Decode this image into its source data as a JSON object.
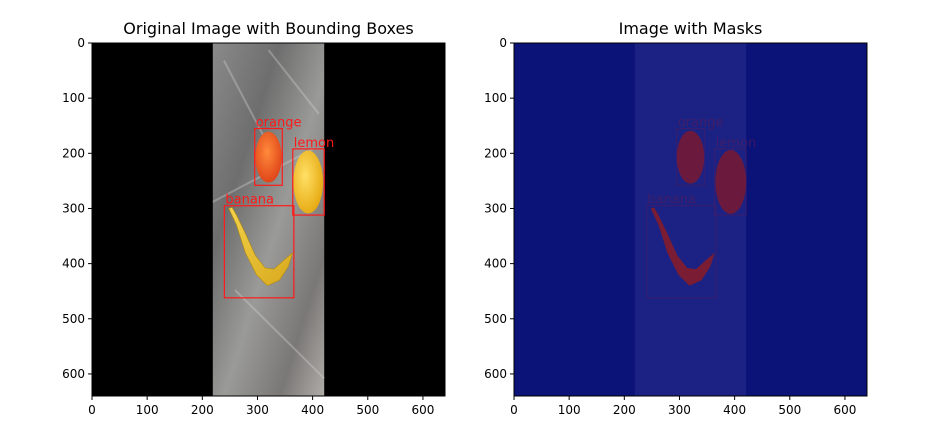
{
  "chart_data": [
    {
      "type": "image",
      "title": "Original Image with Bounding Boxes",
      "xlim": [
        0,
        640
      ],
      "ylim": [
        640,
        0
      ],
      "xticks": [
        0,
        100,
        200,
        300,
        400,
        500,
        600
      ],
      "yticks": [
        0,
        100,
        200,
        300,
        400,
        500,
        600
      ],
      "xtick_labels": [
        "0",
        "100",
        "200",
        "300",
        "400",
        "500",
        "600"
      ],
      "ytick_labels": [
        "0",
        "100",
        "200",
        "300",
        "400",
        "500",
        "600"
      ],
      "photo_strip_x": [
        219,
        421
      ],
      "box_color": "#ff1a1a",
      "boxes": [
        {
          "label": "orange",
          "x0": 295,
          "y0": 155,
          "x1": 345,
          "y1": 258
        },
        {
          "label": "lemon",
          "x0": 364,
          "y0": 192,
          "x1": 421,
          "y1": 312
        },
        {
          "label": "banana",
          "x0": 240,
          "y0": 295,
          "x1": 366,
          "y1": 462
        }
      ]
    },
    {
      "type": "image",
      "title": "Image with Masks",
      "xlim": [
        0,
        640
      ],
      "ylim": [
        640,
        0
      ],
      "xticks": [
        0,
        100,
        200,
        300,
        400,
        500,
        600
      ],
      "yticks": [
        0,
        100,
        200,
        300,
        400,
        500,
        600
      ],
      "xtick_labels": [
        "0",
        "100",
        "200",
        "300",
        "400",
        "500",
        "600"
      ],
      "ytick_labels": [
        "0",
        "100",
        "200",
        "300",
        "400",
        "500",
        "600"
      ],
      "background_color": "#0b1278",
      "mask_color": "#6b1a3e",
      "masks": [
        {
          "label": "orange",
          "cx": 320,
          "cy": 207,
          "rx": 25,
          "ry": 48
        },
        {
          "label": "lemon",
          "cx": 393,
          "cy": 252,
          "rx": 28,
          "ry": 58
        },
        {
          "label": "banana"
        }
      ]
    }
  ]
}
